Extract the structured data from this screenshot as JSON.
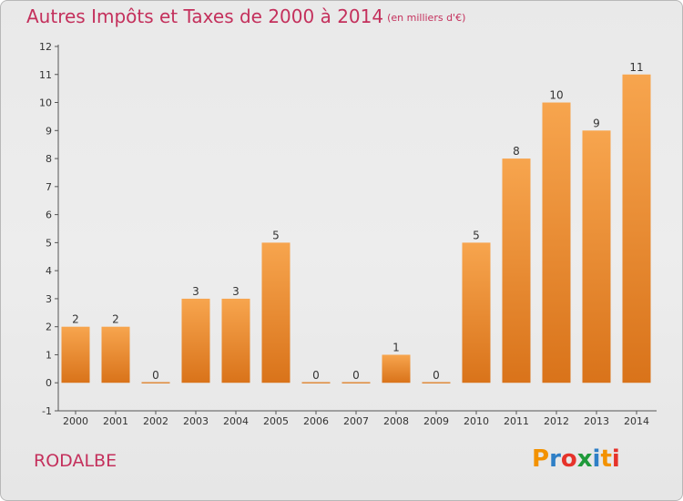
{
  "title": "Autres Impôts et Taxes de 2000 à 2014",
  "subtitle": "(en milliers d'€)",
  "location": "RODALBE",
  "logo": {
    "letters": [
      "P",
      "r",
      "o",
      "x",
      "i",
      "t",
      "i"
    ],
    "colors": [
      "#f39200",
      "#2e7fc6",
      "#e6332a",
      "#1f9a3a",
      "#2e7fc6",
      "#f39200",
      "#e6332a"
    ]
  },
  "chart_data": {
    "type": "bar",
    "title": "Autres Impôts et Taxes de 2000 à 2014",
    "subtitle": "(en milliers d'€)",
    "categories": [
      "2000",
      "2001",
      "2002",
      "2003",
      "2004",
      "2005",
      "2006",
      "2007",
      "2008",
      "2009",
      "2010",
      "2011",
      "2012",
      "2013",
      "2014"
    ],
    "values": [
      2,
      2,
      0,
      3,
      3,
      5,
      0,
      0,
      1,
      0,
      5,
      8,
      10,
      9,
      11
    ],
    "ylim": [
      -1,
      12
    ],
    "yticks": [
      -1,
      0,
      1,
      2,
      3,
      4,
      5,
      6,
      7,
      8,
      9,
      10,
      11,
      12
    ],
    "grid": false,
    "bar_color_top": "#f7a54e",
    "bar_color_bottom": "#d9731a"
  }
}
